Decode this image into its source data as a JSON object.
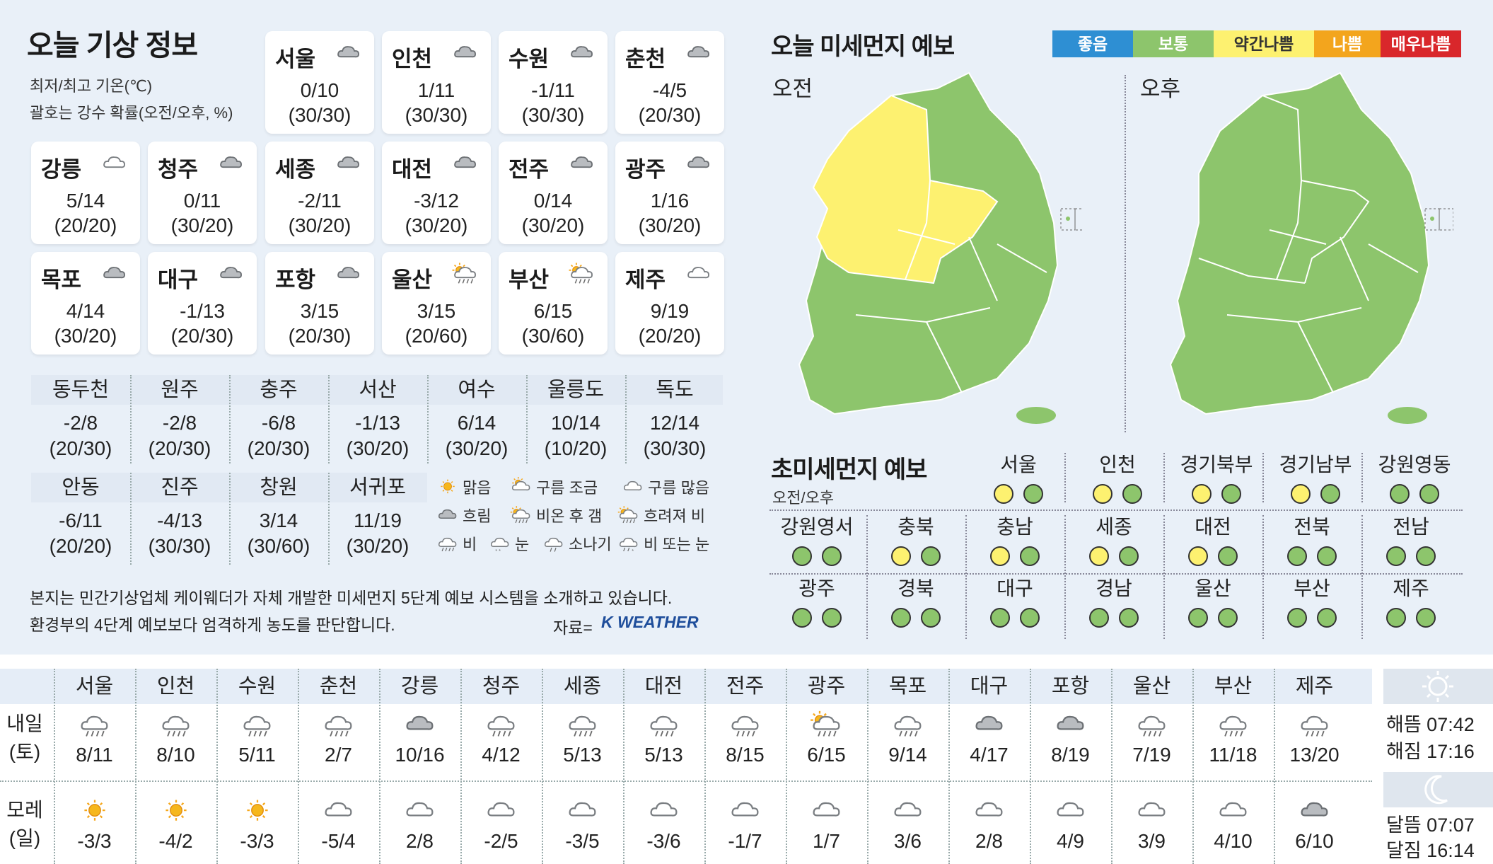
{
  "header": {
    "title": "오늘 기상 정보",
    "subtitle1": "최저/최고 기온(℃)",
    "subtitle2": "괄호는 강수 확률(오전/오후, %)"
  },
  "cities": [
    {
      "name": "서울",
      "temp": "0/10",
      "prob": "(30/30)",
      "icon": "cloudy-icon"
    },
    {
      "name": "인천",
      "temp": "1/11",
      "prob": "(30/30)",
      "icon": "cloudy-icon"
    },
    {
      "name": "수원",
      "temp": "-1/11",
      "prob": "(30/30)",
      "icon": "cloudy-icon"
    },
    {
      "name": "춘천",
      "temp": "-4/5",
      "prob": "(20/30)",
      "icon": "cloudy-icon"
    },
    {
      "name": "강릉",
      "temp": "5/14",
      "prob": "(20/20)",
      "icon": "partly-cloudy-icon"
    },
    {
      "name": "청주",
      "temp": "0/11",
      "prob": "(30/20)",
      "icon": "cloudy-icon"
    },
    {
      "name": "세종",
      "temp": "-2/11",
      "prob": "(30/20)",
      "icon": "cloudy-icon"
    },
    {
      "name": "대전",
      "temp": "-3/12",
      "prob": "(30/20)",
      "icon": "cloudy-icon"
    },
    {
      "name": "전주",
      "temp": "0/14",
      "prob": "(30/20)",
      "icon": "cloudy-icon"
    },
    {
      "name": "광주",
      "temp": "1/16",
      "prob": "(30/20)",
      "icon": "cloudy-icon"
    },
    {
      "name": "목포",
      "temp": "4/14",
      "prob": "(30/20)",
      "icon": "cloudy-icon"
    },
    {
      "name": "대구",
      "temp": "-1/13",
      "prob": "(20/30)",
      "icon": "cloudy-icon"
    },
    {
      "name": "포항",
      "temp": "3/15",
      "prob": "(20/30)",
      "icon": "cloudy-icon"
    },
    {
      "name": "울산",
      "temp": "3/15",
      "prob": "(20/60)",
      "icon": "cloudy-then-rain-icon"
    },
    {
      "name": "부산",
      "temp": "6/15",
      "prob": "(30/60)",
      "icon": "cloudy-then-rain-icon"
    },
    {
      "name": "제주",
      "temp": "9/19",
      "prob": "(20/20)",
      "icon": "partly-cloudy-icon"
    }
  ],
  "table1": [
    {
      "name": "동두천",
      "temp": "-2/8",
      "prob": "(20/30)"
    },
    {
      "name": "원주",
      "temp": "-2/8",
      "prob": "(20/30)"
    },
    {
      "name": "충주",
      "temp": "-6/8",
      "prob": "(20/30)"
    },
    {
      "name": "서산",
      "temp": "-1/13",
      "prob": "(30/20)"
    },
    {
      "name": "여수",
      "temp": "6/14",
      "prob": "(30/20)"
    },
    {
      "name": "울릉도",
      "temp": "10/14",
      "prob": "(10/20)"
    },
    {
      "name": "독도",
      "temp": "12/14",
      "prob": "(30/30)"
    }
  ],
  "table2": [
    {
      "name": "안동",
      "temp": "-6/11",
      "prob": "(20/20)"
    },
    {
      "name": "진주",
      "temp": "-4/13",
      "prob": "(30/30)"
    },
    {
      "name": "창원",
      "temp": "3/14",
      "prob": "(30/60)"
    },
    {
      "name": "서귀포",
      "temp": "11/19",
      "prob": "(30/20)"
    }
  ],
  "legend": [
    {
      "label": "맑음",
      "icon": "sun-icon"
    },
    {
      "label": "구름 조금",
      "icon": "sun-cloud-icon"
    },
    {
      "label": "구름 많음",
      "icon": "partly-cloudy-icon"
    },
    {
      "label": "흐림",
      "icon": "cloudy-icon"
    },
    {
      "label": "비온 후 갬",
      "icon": "rain-then-clear-icon"
    },
    {
      "label": "흐려져 비",
      "icon": "cloudy-then-rain-icon"
    },
    {
      "label": "비",
      "icon": "rain-icon"
    },
    {
      "label": "눈",
      "icon": "snow-icon"
    },
    {
      "label": "소나기",
      "icon": "shower-icon"
    },
    {
      "label": "비 또는 눈",
      "icon": "rain-or-snow-icon"
    }
  ],
  "note": {
    "line1": "본지는 민간기상업체 케이웨더가 자체 개발한 미세먼지 5단계 예보 시스템을 소개하고 있습니다.",
    "line2": "환경부의 4단계 예보보다 엄격하게 농도를 판단합니다.",
    "source": "자료=",
    "brand": "K WEATHER"
  },
  "pm": {
    "title": "오늘 미세먼지 예보",
    "am_label": "오전",
    "pm_label": "오후",
    "scale": [
      {
        "label": "좋음",
        "color": "#2e8fd3"
      },
      {
        "label": "보통",
        "color": "#8dc56c"
      },
      {
        "label": "약간나쁨",
        "color": "#fdf170"
      },
      {
        "label": "나쁨",
        "color": "#f3a51d"
      },
      {
        "label": "매우나쁨",
        "color": "#d9272b"
      }
    ]
  },
  "ultra": {
    "title": "초미세먼지 예보",
    "subtitle": "오전/오후",
    "good_color": "#8dc56c",
    "slightly_bad_color": "#fdf170",
    "regions": [
      {
        "name": "서울",
        "am": "약간나쁨",
        "pm": "보통"
      },
      {
        "name": "인천",
        "am": "약간나쁨",
        "pm": "보통"
      },
      {
        "name": "경기북부",
        "am": "약간나쁨",
        "pm": "보통"
      },
      {
        "name": "경기남부",
        "am": "약간나쁨",
        "pm": "보통"
      },
      {
        "name": "강원영동",
        "am": "보통",
        "pm": "보통"
      },
      {
        "name": "강원영서",
        "am": "보통",
        "pm": "보통"
      },
      {
        "name": "충북",
        "am": "약간나쁨",
        "pm": "보통"
      },
      {
        "name": "충남",
        "am": "약간나쁨",
        "pm": "보통"
      },
      {
        "name": "세종",
        "am": "약간나쁨",
        "pm": "보통"
      },
      {
        "name": "대전",
        "am": "약간나쁨",
        "pm": "보통"
      },
      {
        "name": "전북",
        "am": "보통",
        "pm": "보통"
      },
      {
        "name": "전남",
        "am": "보통",
        "pm": "보통"
      },
      {
        "name": "광주",
        "am": "보통",
        "pm": "보통"
      },
      {
        "name": "경북",
        "am": "보통",
        "pm": "보통"
      },
      {
        "name": "대구",
        "am": "보통",
        "pm": "보통"
      },
      {
        "name": "경남",
        "am": "보통",
        "pm": "보통"
      },
      {
        "name": "울산",
        "am": "보통",
        "pm": "보통"
      },
      {
        "name": "부산",
        "am": "보통",
        "pm": "보통"
      },
      {
        "name": "제주",
        "am": "보통",
        "pm": "보통"
      }
    ]
  },
  "forecast": {
    "row1_label": [
      "내일",
      "(토)"
    ],
    "row2_label": [
      "모레",
      "(일)"
    ],
    "cities": [
      "서울",
      "인천",
      "수원",
      "춘천",
      "강릉",
      "청주",
      "세종",
      "대전",
      "전주",
      "광주",
      "목포",
      "대구",
      "포항",
      "울산",
      "부산",
      "제주"
    ],
    "tomorrow": [
      {
        "temp": "8/11",
        "icon": "rain-icon"
      },
      {
        "temp": "8/10",
        "icon": "rain-icon"
      },
      {
        "temp": "5/11",
        "icon": "rain-icon"
      },
      {
        "temp": "2/7",
        "icon": "rain-icon"
      },
      {
        "temp": "10/16",
        "icon": "cloudy-icon"
      },
      {
        "temp": "4/12",
        "icon": "rain-icon"
      },
      {
        "temp": "5/13",
        "icon": "rain-icon"
      },
      {
        "temp": "5/13",
        "icon": "rain-icon"
      },
      {
        "temp": "8/15",
        "icon": "rain-icon"
      },
      {
        "temp": "6/15",
        "icon": "rain-then-clear-icon"
      },
      {
        "temp": "9/14",
        "icon": "rain-icon"
      },
      {
        "temp": "4/17",
        "icon": "cloudy-icon"
      },
      {
        "temp": "8/19",
        "icon": "cloudy-icon"
      },
      {
        "temp": "7/19",
        "icon": "rain-icon"
      },
      {
        "temp": "11/18",
        "icon": "rain-icon"
      },
      {
        "temp": "13/20",
        "icon": "rain-icon"
      }
    ],
    "dayafter": [
      {
        "temp": "-3/3",
        "icon": "sun-icon"
      },
      {
        "temp": "-4/2",
        "icon": "sun-icon"
      },
      {
        "temp": "-3/3",
        "icon": "sun-icon"
      },
      {
        "temp": "-5/4",
        "icon": "partly-cloudy-icon"
      },
      {
        "temp": "2/8",
        "icon": "partly-cloudy-icon"
      },
      {
        "temp": "-2/5",
        "icon": "partly-cloudy-icon"
      },
      {
        "temp": "-3/5",
        "icon": "partly-cloudy-icon"
      },
      {
        "temp": "-3/6",
        "icon": "partly-cloudy-icon"
      },
      {
        "temp": "-1/7",
        "icon": "partly-cloudy-icon"
      },
      {
        "temp": "1/7",
        "icon": "partly-cloudy-icon"
      },
      {
        "temp": "3/6",
        "icon": "partly-cloudy-icon"
      },
      {
        "temp": "2/8",
        "icon": "partly-cloudy-icon"
      },
      {
        "temp": "4/9",
        "icon": "partly-cloudy-icon"
      },
      {
        "temp": "3/9",
        "icon": "partly-cloudy-icon"
      },
      {
        "temp": "4/10",
        "icon": "partly-cloudy-icon"
      },
      {
        "temp": "6/10",
        "icon": "cloudy-icon"
      }
    ],
    "sunrise": "해뜸 07:42",
    "sunset": "해짐 17:16",
    "moonrise": "달뜸 07:07",
    "moonset": "달짐 16:14"
  }
}
